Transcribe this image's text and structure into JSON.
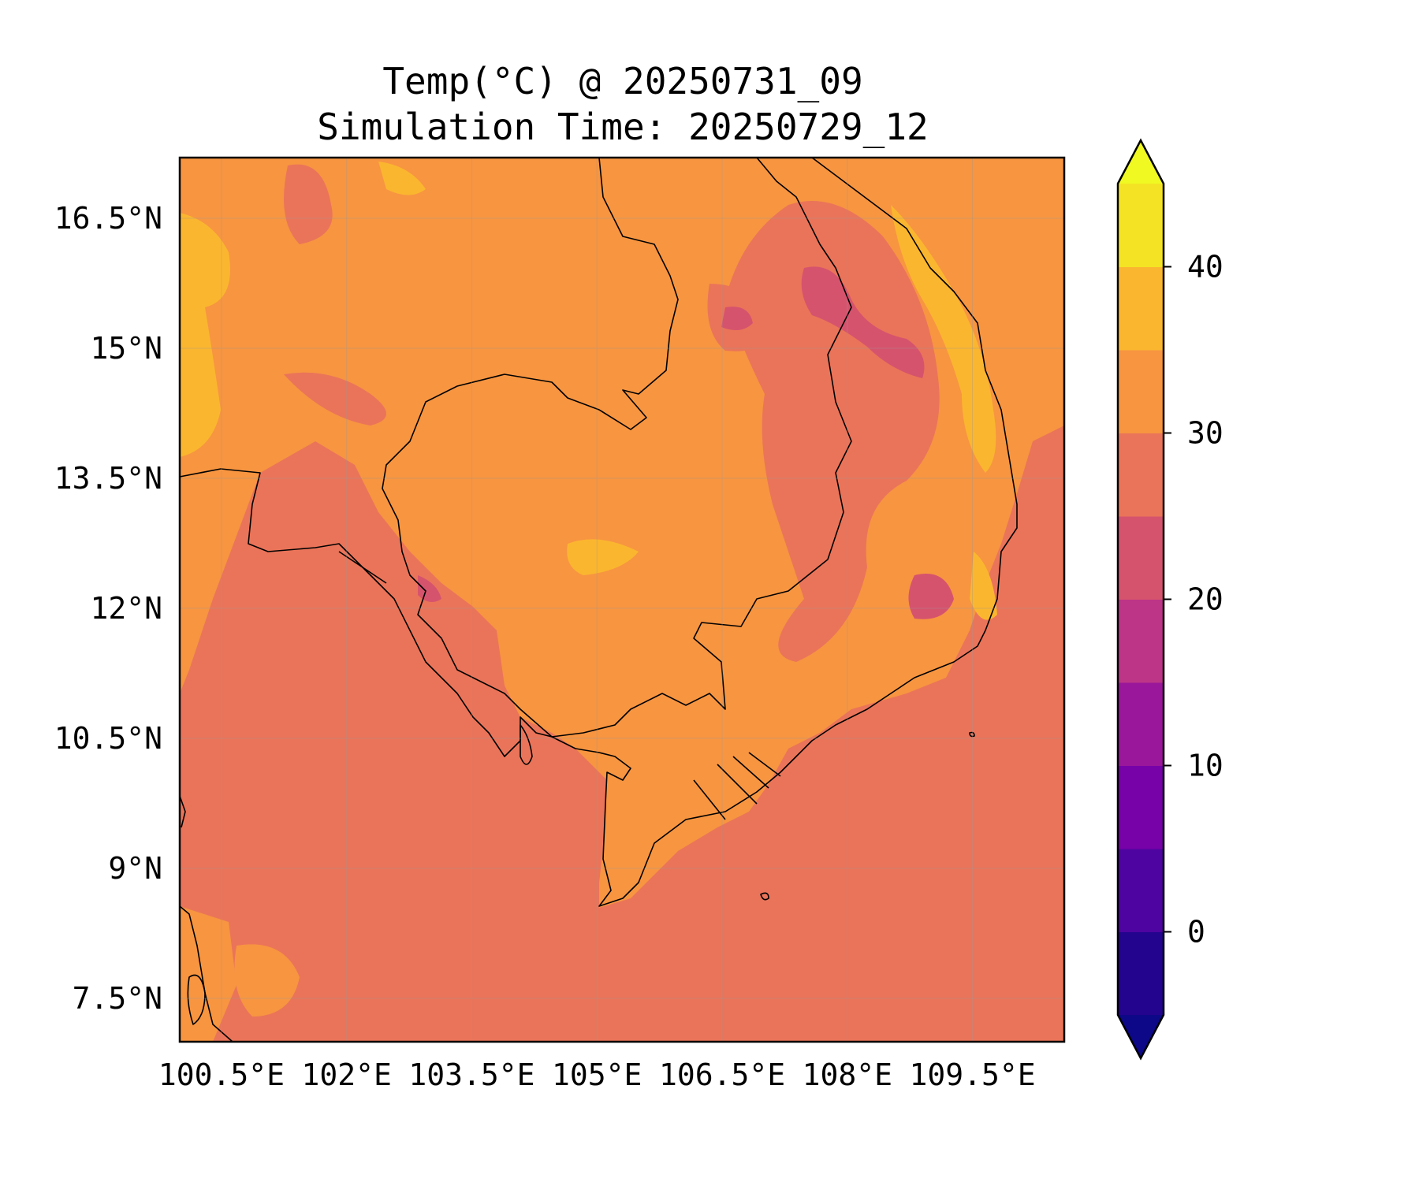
{
  "title": {
    "line1": "Temp(°C) @ 20250731_09",
    "line2": "Simulation Time: 20250729_12"
  },
  "map": {
    "lon_range": [
      100,
      110.6
    ],
    "lat_range": [
      7,
      17.2
    ],
    "lon_ticks": [
      {
        "value": 100.5,
        "label": "100.5°E"
      },
      {
        "value": 102,
        "label": "102°E"
      },
      {
        "value": 103.5,
        "label": "103.5°E"
      },
      {
        "value": 105,
        "label": "105°E"
      },
      {
        "value": 106.5,
        "label": "106.5°E"
      },
      {
        "value": 108,
        "label": "108°E"
      },
      {
        "value": 109.5,
        "label": "109.5°E"
      }
    ],
    "lat_ticks": [
      {
        "value": 16.5,
        "label": "16.5°N"
      },
      {
        "value": 15,
        "label": "15°N"
      },
      {
        "value": 13.5,
        "label": "13.5°N"
      },
      {
        "value": 12,
        "label": "12°N"
      },
      {
        "value": 10.5,
        "label": "10.5°N"
      },
      {
        "value": 9,
        "label": "9°N"
      },
      {
        "value": 7.5,
        "label": "7.5°N"
      }
    ],
    "background_color": "#ea7459",
    "land_color": "#f79541"
  },
  "colorbar": {
    "range": [
      -5,
      45
    ],
    "levels": [
      -5,
      0,
      5,
      10,
      15,
      20,
      25,
      30,
      35,
      40,
      45
    ],
    "colors": [
      "#23048f",
      "#4e04a0",
      "#7602a8",
      "#9a179b",
      "#bc3587",
      "#d6536d",
      "#ea7459",
      "#f79541",
      "#fbb62f",
      "#f4e324"
    ],
    "under_color": "#0d0887",
    "over_color": "#f0f921",
    "tick_labels": [
      {
        "value": 0,
        "label": "0"
      },
      {
        "value": 10,
        "label": "10"
      },
      {
        "value": 20,
        "label": "20"
      },
      {
        "value": 30,
        "label": "30"
      },
      {
        "value": 40,
        "label": "40"
      }
    ]
  }
}
